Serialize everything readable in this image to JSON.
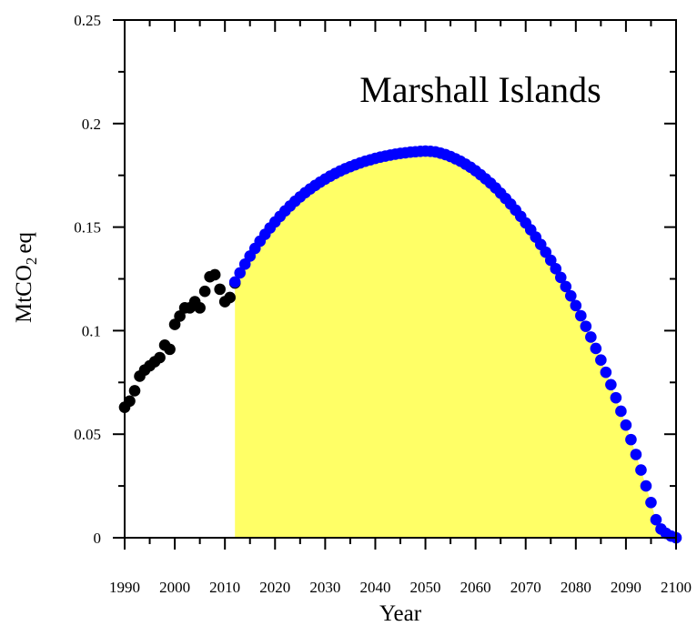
{
  "chart_data": {
    "type": "scatter",
    "title": "Marshall Islands",
    "xlabel": "Year",
    "ylabel": "MtCO",
    "ylabel_sub": "2",
    "ylabel_suffix": "eq",
    "xlim": [
      1990,
      2100
    ],
    "ylim": [
      0,
      0.25
    ],
    "x_ticks": [
      1990,
      2000,
      2010,
      2020,
      2030,
      2040,
      2050,
      2060,
      2070,
      2080,
      2090,
      2100
    ],
    "x_tick_labels": [
      "1990",
      "2000",
      "2010",
      "2020",
      "2030",
      "2040",
      "2050",
      "2060",
      "2070",
      "2080",
      "2090",
      "2100"
    ],
    "y_ticks": [
      0,
      0.05,
      0.1,
      0.15,
      0.2,
      0.25
    ],
    "y_tick_labels": [
      "0",
      "0.05",
      "0.1",
      "0.15",
      "0.2",
      "0.25"
    ],
    "grid": false,
    "colors": {
      "historical": "#000000",
      "projection": "#0000ff",
      "fill": "#ffff66"
    },
    "series": [
      {
        "x": [
          1990,
          1991,
          1992,
          1993,
          1994,
          1995,
          1996,
          1997,
          1998,
          1999,
          2000,
          2001,
          2002,
          2003,
          2004,
          2005,
          2006,
          2007,
          2008,
          2009,
          2010,
          2011,
          2012
        ],
        "y": [
          0.063,
          0.066,
          0.071,
          0.078,
          0.081,
          0.083,
          0.085,
          0.087,
          0.093,
          0.091,
          0.103,
          0.107,
          0.111,
          0.111,
          0.114,
          0.111,
          0.119,
          0.126,
          0.127,
          0.12,
          0.114,
          0.116,
          0.123
        ]
      },
      {
        "x": [
          2012,
          2013,
          2014,
          2015,
          2016,
          2017,
          2018,
          2019,
          2020,
          2021,
          2022,
          2023,
          2024,
          2025,
          2026,
          2027,
          2028,
          2029,
          2030,
          2031,
          2032,
          2033,
          2034,
          2035,
          2036,
          2037,
          2038,
          2039,
          2040,
          2041,
          2042,
          2043,
          2044,
          2045,
          2046,
          2047,
          2048,
          2049,
          2050,
          2051,
          2052,
          2053,
          2054,
          2055,
          2056,
          2057,
          2058,
          2059,
          2060,
          2061,
          2062,
          2063,
          2064,
          2065,
          2066,
          2067,
          2068,
          2069,
          2070,
          2071,
          2072,
          2073,
          2074,
          2075,
          2076,
          2077,
          2078,
          2079,
          2080,
          2081,
          2082,
          2083,
          2084,
          2085,
          2086,
          2087,
          2088,
          2089,
          2090,
          2091,
          2092,
          2093,
          2094,
          2095,
          2096,
          2097,
          2098,
          2099,
          2100
        ],
        "y": [
          0.1235,
          0.1279,
          0.1321,
          0.136,
          0.1397,
          0.1432,
          0.1465,
          0.1496,
          0.1525,
          0.1552,
          0.1578,
          0.1602,
          0.1625,
          0.1646,
          0.1666,
          0.1684,
          0.1701,
          0.1717,
          0.1732,
          0.1746,
          0.1759,
          0.1771,
          0.1782,
          0.1792,
          0.1801,
          0.181,
          0.1818,
          0.1825,
          0.1832,
          0.1838,
          0.1843,
          0.1848,
          0.1852,
          0.1856,
          0.1859,
          0.1862,
          0.1864,
          0.1866,
          0.1867,
          0.1866,
          0.1863,
          0.1857,
          0.185,
          0.1841,
          0.183,
          0.1818,
          0.1804,
          0.1789,
          0.1772,
          0.1753,
          0.1733,
          0.1712,
          0.1689,
          0.1664,
          0.1638,
          0.1611,
          0.1582,
          0.1552,
          0.152,
          0.1487,
          0.1452,
          0.1416,
          0.1379,
          0.134,
          0.1299,
          0.1257,
          0.1213,
          0.1168,
          0.1121,
          0.1072,
          0.1021,
          0.0969,
          0.0914,
          0.0858,
          0.0799,
          0.0739,
          0.0676,
          0.0611,
          0.0544,
          0.0474,
          0.0402,
          0.0327,
          0.025,
          0.017,
          0.0087,
          0.0042,
          0.0021,
          0.0008,
          0.0
        ]
      }
    ]
  }
}
